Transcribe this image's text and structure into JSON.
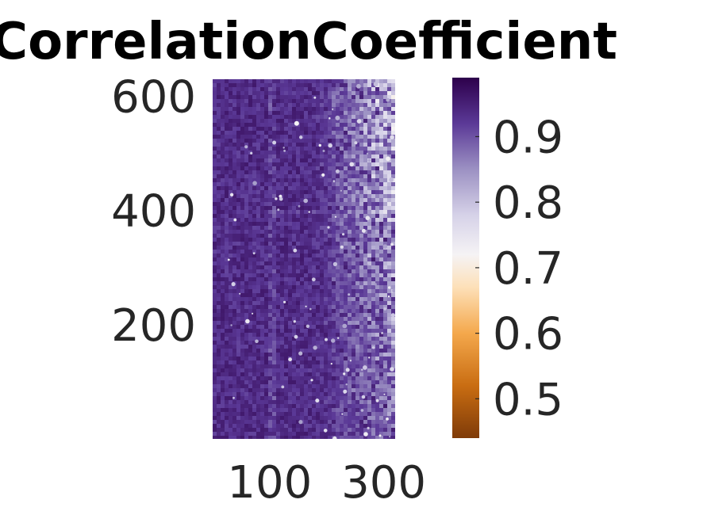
{
  "chart_data": {
    "type": "heatmap",
    "title": "CorrelationCoefficient",
    "xlabel": "",
    "ylabel": "",
    "x_ticks": [
      100,
      300
    ],
    "x_tick_labels": [
      "100",
      "300"
    ],
    "y_ticks": [
      200,
      400,
      600
    ],
    "y_tick_labels": [
      "200",
      "400",
      "600"
    ],
    "xlim": [
      0,
      320
    ],
    "ylim": [
      0,
      630
    ],
    "colorbar": {
      "range": [
        0.44,
        0.99
      ],
      "ticks": [
        0.5,
        0.6,
        0.7,
        0.8,
        0.9
      ],
      "tick_labels": [
        "0.5",
        "0.6",
        "0.7",
        "0.8",
        "0.9"
      ],
      "colormap": "PuOr",
      "stops": [
        {
          "value": 0.44,
          "color": "#7f3b08"
        },
        {
          "value": 0.52,
          "color": "#c96d12"
        },
        {
          "value": 0.6,
          "color": "#f4a84c"
        },
        {
          "value": 0.67,
          "color": "#fde0b8"
        },
        {
          "value": 0.72,
          "color": "#f5f3f5"
        },
        {
          "value": 0.78,
          "color": "#d6d2e8"
        },
        {
          "value": 0.85,
          "color": "#9c91c3"
        },
        {
          "value": 0.92,
          "color": "#5b3997"
        },
        {
          "value": 0.99,
          "color": "#2d004b"
        }
      ]
    },
    "field_description": "Mostly dark purple (0.9-0.99); lighter speckles increasing toward right side (x > 200, upper region); faint horizontal line near y=400 and vertical line near x=100",
    "grid": false,
    "legend": "none"
  }
}
